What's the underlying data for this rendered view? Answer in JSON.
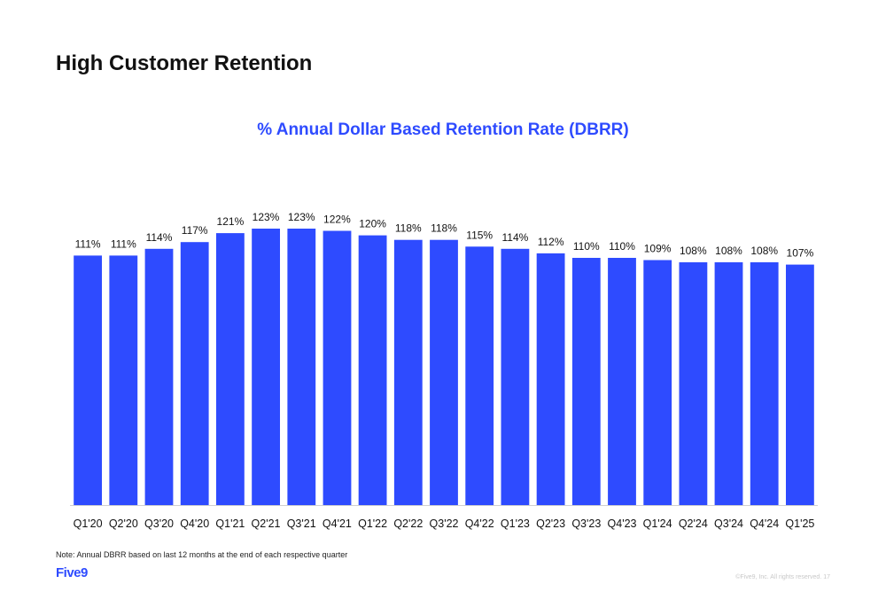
{
  "slide": {
    "title": "High Customer Retention",
    "note": "Note: Annual DBRR based on last 12 months at the end of each respective quarter",
    "logo": "Five9",
    "copyright": "©Five9, Inc. All rights reserved. 17"
  },
  "colors": {
    "bar": "#2e4bff",
    "title_accent": "#2e4bff"
  },
  "chart_data": {
    "type": "bar",
    "title": "% Annual Dollar Based Retention Rate (DBRR)",
    "xlabel": "",
    "ylabel": "",
    "value_suffix": "%",
    "ylim": [
      0,
      123
    ],
    "grid": false,
    "categories": [
      "Q1'20",
      "Q2'20",
      "Q3'20",
      "Q4'20",
      "Q1'21",
      "Q2'21",
      "Q3'21",
      "Q4'21",
      "Q1'22",
      "Q2'22",
      "Q3'22",
      "Q4'22",
      "Q1'23",
      "Q2'23",
      "Q3'23",
      "Q4'23",
      "Q1'24",
      "Q2'24",
      "Q3'24",
      "Q4'24",
      "Q1'25"
    ],
    "values": [
      111,
      111,
      114,
      117,
      121,
      123,
      123,
      122,
      120,
      118,
      118,
      115,
      114,
      112,
      110,
      110,
      109,
      108,
      108,
      108,
      107
    ]
  }
}
